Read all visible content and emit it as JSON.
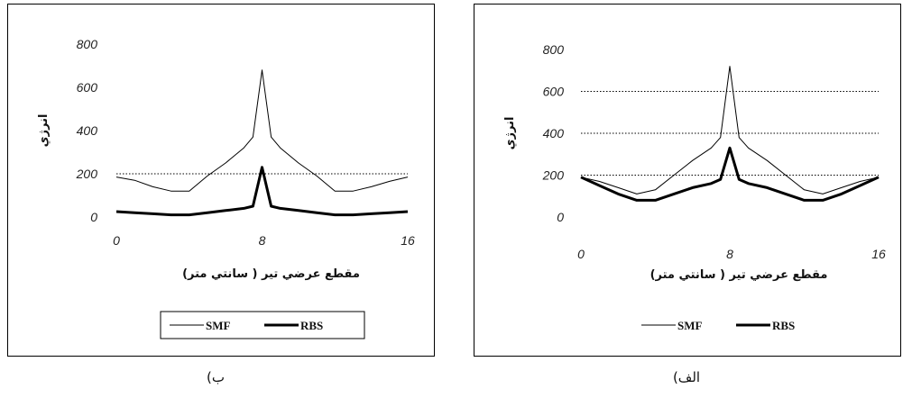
{
  "chart_data": [
    {
      "id": "b",
      "type": "line",
      "caption": "ب)",
      "xlabel": "مقطع عرضي تير ( سانتي متر)",
      "ylabel": "انرژي",
      "xlim": [
        0,
        16
      ],
      "ylim": [
        0,
        800
      ],
      "xticks": [
        "0",
        "8",
        "16"
      ],
      "yticks": [
        "0",
        "200",
        "400",
        "600",
        "800"
      ],
      "grid": "horizontal dotted lines at 200",
      "gridlines": [
        200
      ],
      "legend_placement": "bottom",
      "legend_boxed": true,
      "series": [
        {
          "name": "SMF",
          "stroke": "#000000",
          "width": 1,
          "x": [
            0,
            1,
            2,
            3,
            4,
            5,
            6,
            7,
            7.5,
            8,
            8.5,
            9,
            10,
            11,
            12,
            13,
            14,
            15,
            16
          ],
          "y": [
            185,
            170,
            140,
            120,
            120,
            190,
            250,
            320,
            370,
            680,
            370,
            320,
            250,
            190,
            120,
            120,
            140,
            165,
            185
          ]
        },
        {
          "name": "RBS",
          "stroke": "#000000",
          "width": 3,
          "x": [
            0,
            1,
            2,
            3,
            4,
            5,
            6,
            7,
            7.5,
            8,
            8.5,
            9,
            10,
            11,
            12,
            13,
            14,
            15,
            16
          ],
          "y": [
            25,
            20,
            15,
            10,
            10,
            20,
            30,
            40,
            50,
            230,
            50,
            40,
            30,
            20,
            10,
            10,
            15,
            20,
            25
          ]
        }
      ]
    },
    {
      "id": "alef",
      "type": "line",
      "caption": "الف)",
      "xlabel": "مقطع عرضي تير ( سانتي متر)",
      "ylabel": "انرژي",
      "xlim": [
        0,
        16
      ],
      "ylim": [
        0,
        800
      ],
      "xticks": [
        "0",
        "8",
        "16"
      ],
      "yticks": [
        "0",
        "200",
        "400",
        "600",
        "800"
      ],
      "grid": "horizontal dotted lines at 200, 400, 600",
      "gridlines": [
        200,
        400,
        600
      ],
      "legend_placement": "bottom",
      "legend_boxed": false,
      "series": [
        {
          "name": "SMF",
          "stroke": "#000000",
          "width": 1,
          "x": [
            0,
            1,
            2,
            3,
            4,
            5,
            6,
            7,
            7.5,
            8,
            8.5,
            9,
            10,
            11,
            12,
            13,
            14,
            15,
            16
          ],
          "y": [
            190,
            170,
            140,
            110,
            130,
            200,
            270,
            330,
            380,
            720,
            380,
            330,
            270,
            200,
            130,
            110,
            140,
            170,
            190
          ]
        },
        {
          "name": "RBS",
          "stroke": "#000000",
          "width": 3,
          "x": [
            0,
            1,
            2,
            3,
            4,
            5,
            6,
            7,
            7.5,
            8,
            8.5,
            9,
            10,
            11,
            12,
            13,
            14,
            15,
            16
          ],
          "y": [
            190,
            150,
            110,
            80,
            80,
            110,
            140,
            160,
            180,
            330,
            180,
            160,
            140,
            110,
            80,
            80,
            110,
            150,
            190
          ]
        }
      ]
    }
  ]
}
